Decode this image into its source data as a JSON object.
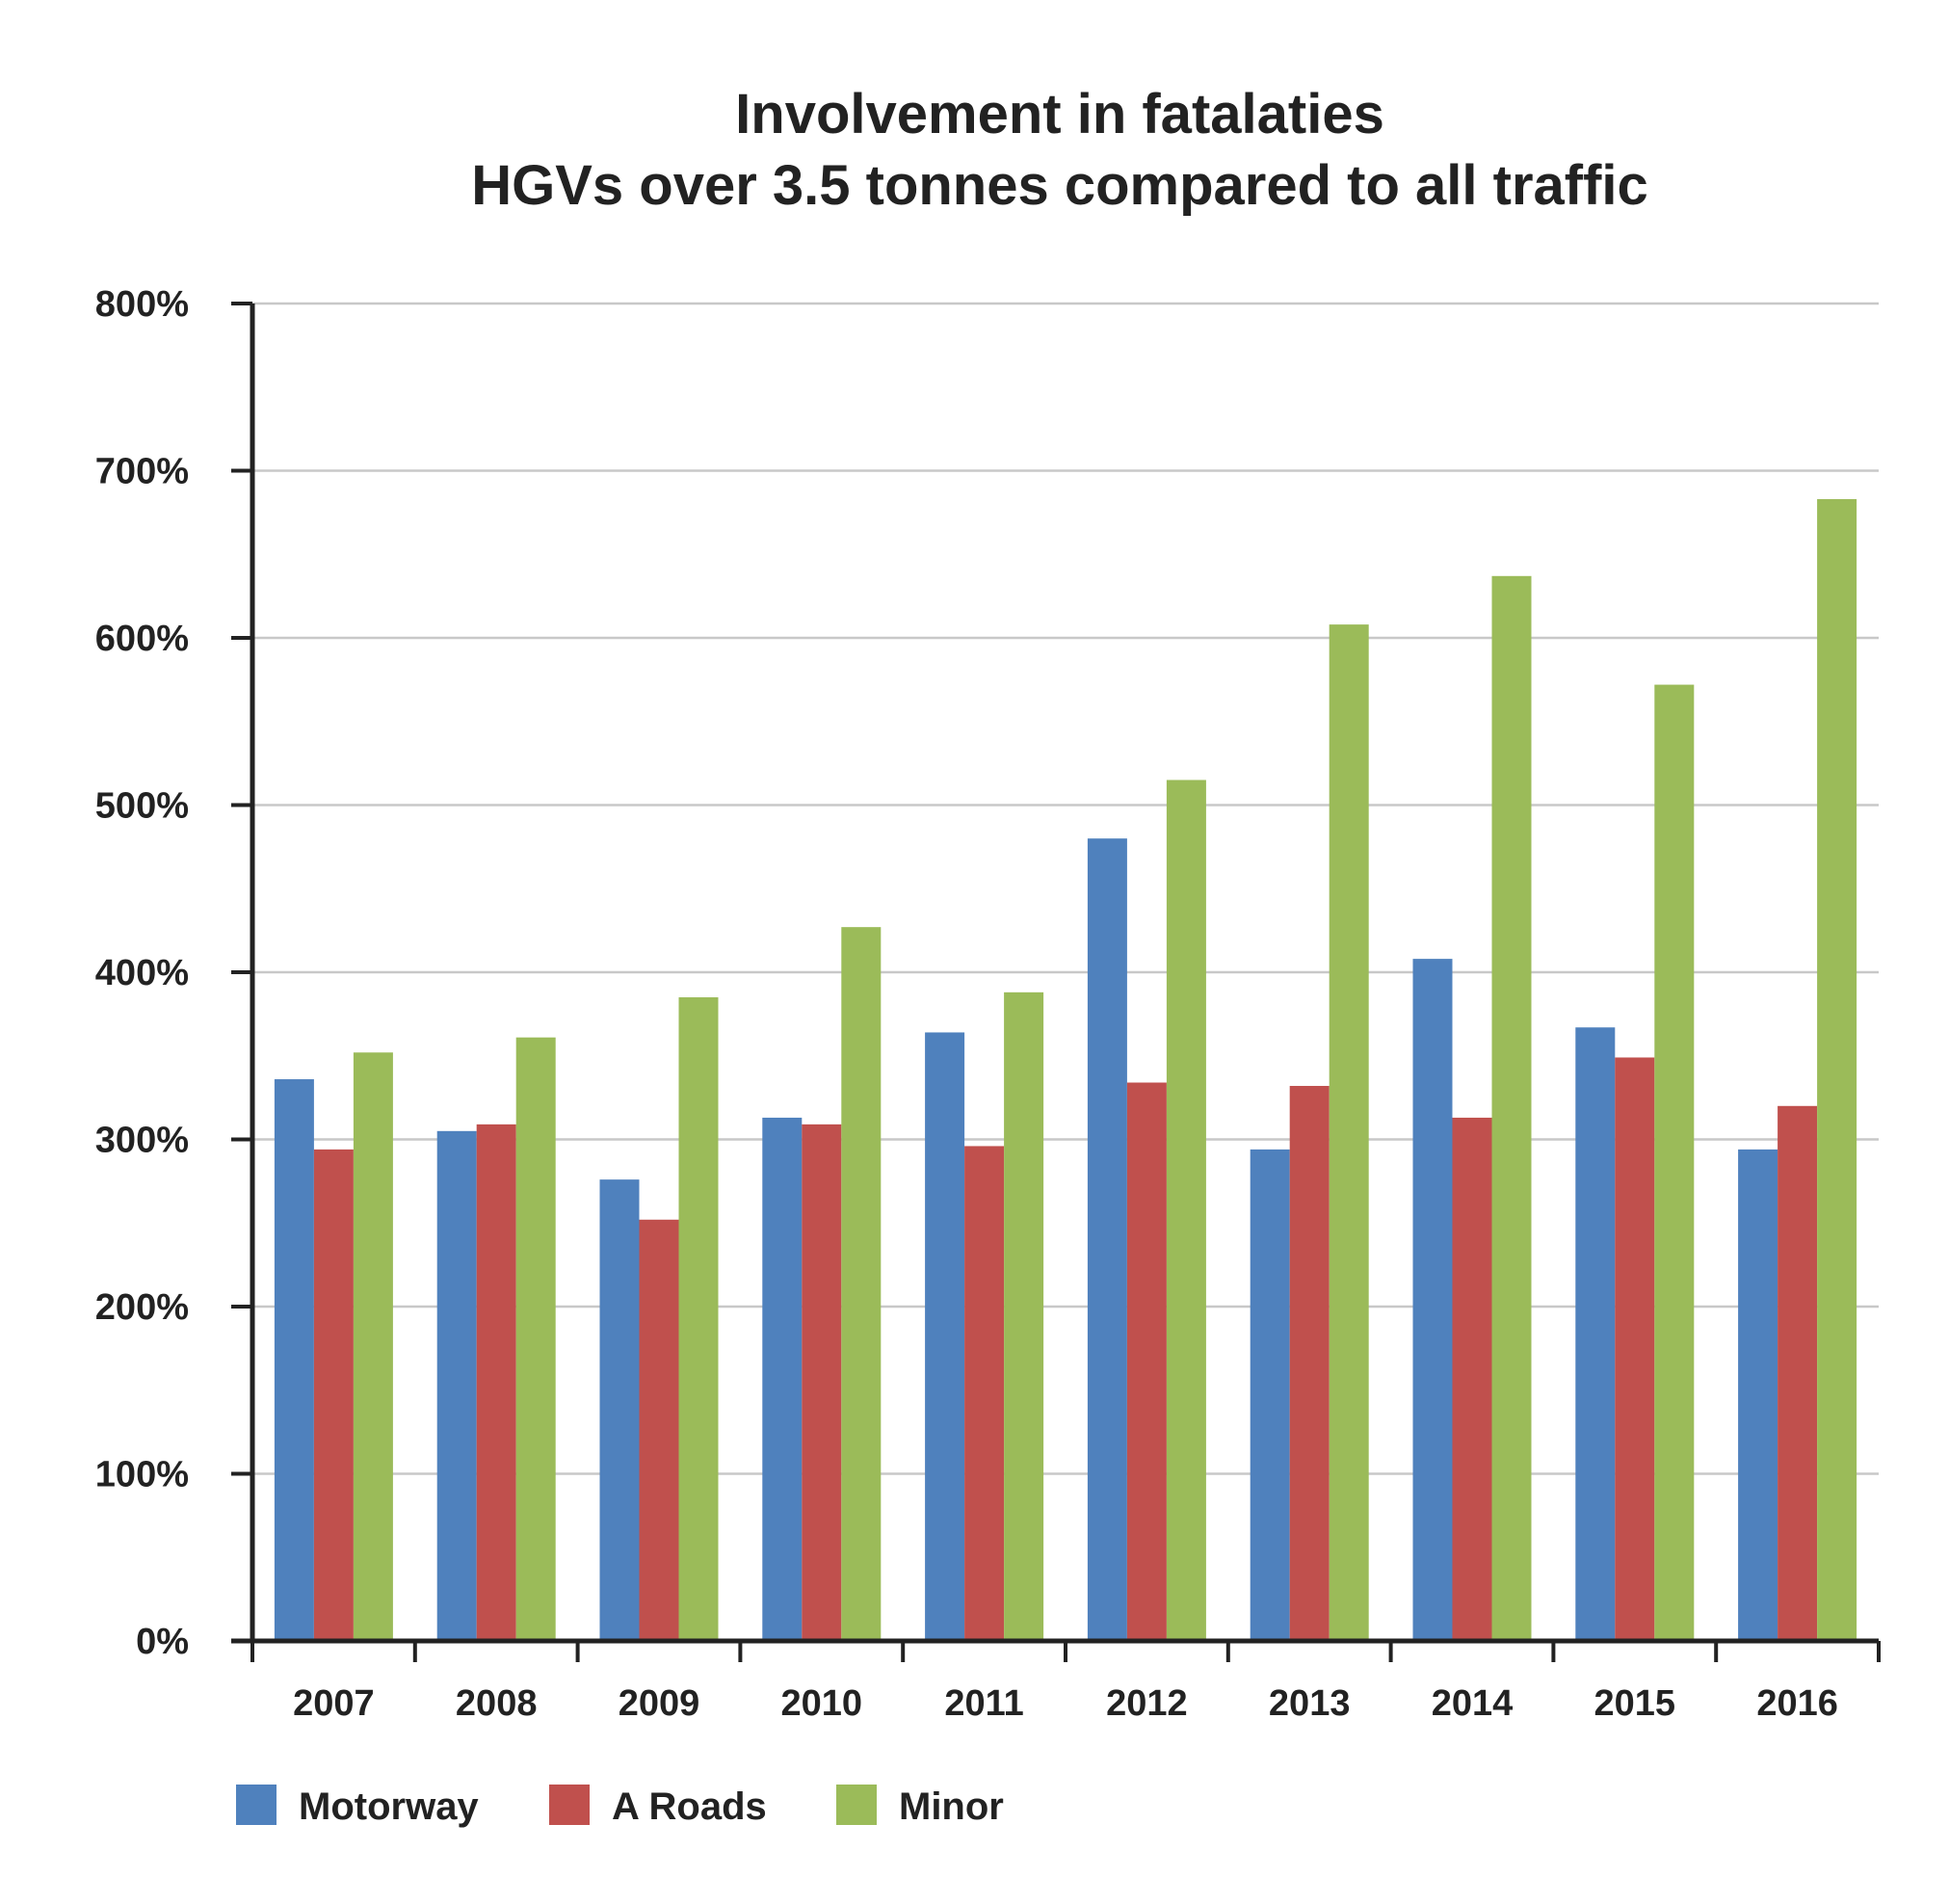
{
  "chart_data": {
    "type": "bar",
    "title": [
      "Involvement in fatalaties",
      "HGVs over 3.5 tonnes compared to all traffic"
    ],
    "categories": [
      "2007",
      "2008",
      "2009",
      "2010",
      "2011",
      "2012",
      "2013",
      "2014",
      "2015",
      "2016"
    ],
    "series": [
      {
        "name": "Motorway",
        "color": "#4f81bd",
        "values": [
          336,
          305,
          276,
          313,
          364,
          480,
          294,
          408,
          367,
          294
        ]
      },
      {
        "name": "A Roads",
        "color": "#c0504d",
        "values": [
          294,
          309,
          252,
          309,
          296,
          334,
          332,
          313,
          349,
          320
        ]
      },
      {
        "name": "Minor",
        "color": "#9bbb59",
        "values": [
          352,
          361,
          385,
          427,
          388,
          515,
          608,
          637,
          572,
          683
        ]
      }
    ],
    "ylim": [
      0,
      800
    ],
    "yticks": [
      0,
      100,
      200,
      300,
      400,
      500,
      600,
      700,
      800
    ],
    "ytick_labels": [
      "0%",
      "100%",
      "200%",
      "300%",
      "400%",
      "500%",
      "600%",
      "700%",
      "800%"
    ],
    "xlabel": "",
    "ylabel": "",
    "grid": true,
    "legend_position": "bottom-left"
  },
  "colors": {
    "axis": "#222222",
    "grid": "#c8c8c8",
    "text": "#222222"
  }
}
